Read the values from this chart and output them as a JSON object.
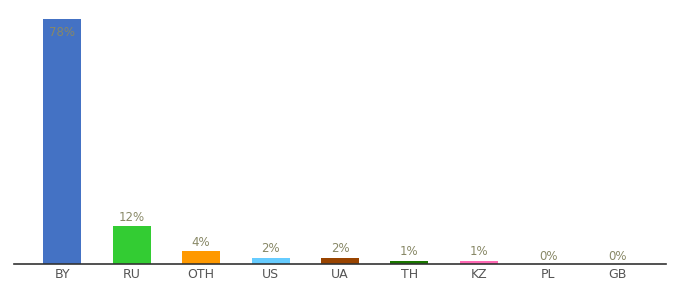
{
  "categories": [
    "BY",
    "RU",
    "OTH",
    "US",
    "UA",
    "TH",
    "KZ",
    "PL",
    "GB"
  ],
  "values": [
    78,
    12,
    4,
    2,
    2,
    1,
    1,
    0,
    0
  ],
  "bar_colors": [
    "#4472c4",
    "#33cc33",
    "#ff9900",
    "#66ccff",
    "#994400",
    "#1a7700",
    "#ff69b4",
    "#bbbbbb",
    "#bbbbbb"
  ],
  "labels": [
    "78%",
    "12%",
    "4%",
    "2%",
    "2%",
    "1%",
    "1%",
    "0%",
    "0%"
  ],
  "label_color": "#888866",
  "background_color": "#ffffff",
  "ylim": [
    0,
    82
  ],
  "label_fontsize": 8.5,
  "tick_fontsize": 9,
  "bar_width": 0.55,
  "label_inside_threshold": 70
}
